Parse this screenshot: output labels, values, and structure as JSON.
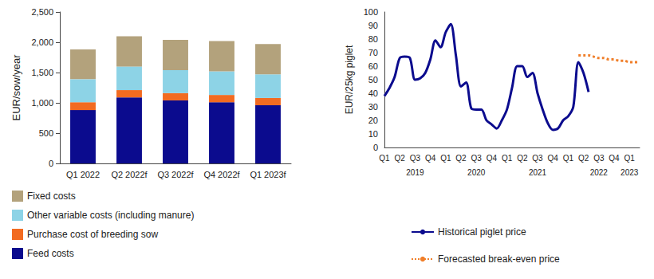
{
  "chart_data": [
    {
      "type": "bar",
      "stacked": true,
      "grid": false,
      "legend": "bottom-left",
      "y_label": "EUR/sow/year",
      "categories": [
        "Q1 2022",
        "Q2 2022f",
        "Q3 2022f",
        "Q4 2022f",
        "Q1 2023f"
      ],
      "ylim": [
        0,
        2500
      ],
      "yticks": [
        0,
        500,
        1000,
        1500,
        2000,
        2500
      ],
      "series": [
        {
          "name": "Feed costs",
          "color": "#0b0b8e",
          "values": [
            880,
            1090,
            1040,
            1010,
            960
          ]
        },
        {
          "name": "Purchase cost of breeding sow",
          "color": "#f26b21",
          "values": [
            130,
            120,
            120,
            120,
            120
          ]
        },
        {
          "name": "Other variable costs (including manure)",
          "color": "#8dd3e6",
          "values": [
            380,
            390,
            380,
            390,
            390
          ]
        },
        {
          "name": "Fixed costs",
          "color": "#b3a27c",
          "values": [
            490,
            500,
            500,
            500,
            500
          ]
        }
      ]
    },
    {
      "type": "line",
      "grid": false,
      "legend": "bottom-left",
      "y_label": "EUR/25kg piglet",
      "categories": [
        "Q1",
        null,
        null,
        "Q2",
        null,
        null,
        "Q3",
        null,
        null,
        "Q4",
        null,
        null,
        "Q1",
        null,
        null,
        "Q2",
        null,
        null,
        "Q3",
        null,
        null,
        "Q4",
        null,
        null,
        "Q1",
        null,
        null,
        "Q2",
        null,
        null,
        "Q3",
        null,
        null,
        "Q4",
        null,
        null,
        "Q1",
        null,
        null,
        "Q2",
        null,
        null,
        "Q3",
        null,
        null,
        "Q4",
        null,
        null,
        "Q1",
        null,
        null
      ],
      "year_labels": [
        "2019",
        "2020",
        "2021",
        "2022",
        "2023"
      ],
      "ylim": [
        0,
        100
      ],
      "yticks": [
        0,
        10,
        20,
        30,
        40,
        50,
        60,
        70,
        80,
        90,
        100
      ],
      "series": [
        {
          "name": "Historical piglet price",
          "color": "#0b0b8e",
          "line_style": "solid",
          "values": [
            38,
            44,
            52,
            66,
            67,
            66,
            50,
            51,
            55,
            65,
            79,
            74,
            85,
            91,
            68,
            45,
            48,
            29,
            28,
            28,
            20,
            17,
            14,
            20,
            28,
            44,
            60,
            60,
            52,
            55,
            40,
            28,
            18,
            13,
            14,
            20,
            23,
            30,
            63,
            55,
            41,
            null,
            null,
            null,
            null,
            null,
            null,
            null,
            null,
            null,
            null
          ]
        },
        {
          "name": "Forecasted break-even price",
          "color": "#f07f2a",
          "line_style": "dotted",
          "values": [
            null,
            null,
            null,
            null,
            null,
            null,
            null,
            null,
            null,
            null,
            null,
            null,
            null,
            null,
            null,
            null,
            null,
            null,
            null,
            null,
            null,
            null,
            null,
            null,
            null,
            null,
            null,
            null,
            null,
            null,
            null,
            null,
            null,
            null,
            null,
            null,
            null,
            null,
            68,
            68,
            68,
            67,
            66,
            66,
            65,
            65,
            64,
            64,
            63,
            63,
            63
          ]
        }
      ]
    }
  ]
}
